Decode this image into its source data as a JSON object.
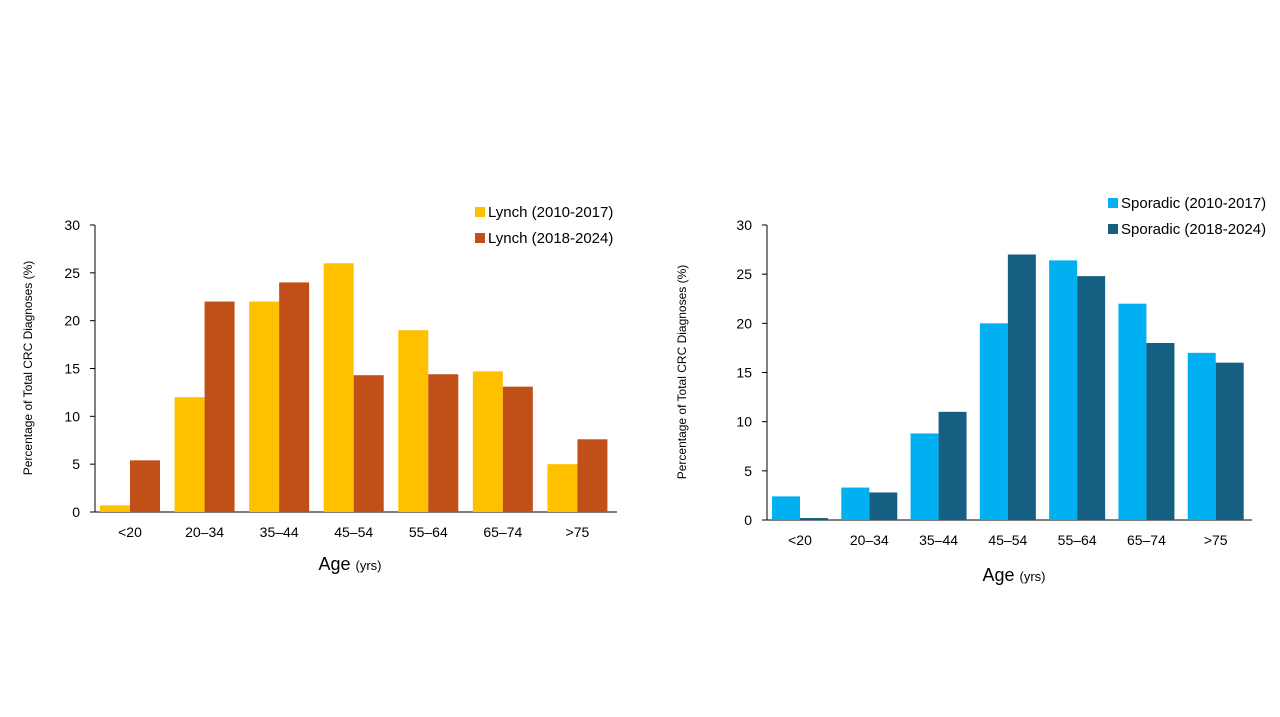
{
  "chart_data": [
    {
      "type": "bar",
      "categories": [
        "<20",
        "20–34",
        "35–44",
        "45–54",
        "55–64",
        "65–74",
        ">75"
      ],
      "series": [
        {
          "name": "Lynch (2010-2017)",
          "color": "#FFC000",
          "values": [
            0.7,
            12,
            22,
            26,
            19,
            14.7,
            5
          ]
        },
        {
          "name": "Lynch (2018-2024)",
          "color": "#C05017",
          "values": [
            5.4,
            22,
            24,
            14.3,
            14.4,
            13.1,
            7.6
          ]
        }
      ],
      "xlabel": "Age",
      "xlabel_unit": "(yrs)",
      "ylabel": "Percentage of Total CRC Diagnoses",
      "ylabel_unit": "(%)",
      "ylim": [
        0,
        30
      ],
      "yticks": [
        "0",
        "5",
        "10",
        "15",
        "20",
        "25",
        "30"
      ],
      "legend": "top-right",
      "grid": false
    },
    {
      "type": "bar",
      "categories": [
        "<20",
        "20–34",
        "35–44",
        "45–54",
        "55–64",
        "65–74",
        ">75"
      ],
      "series": [
        {
          "name": "Sporadic (2010-2017)",
          "color": "#00B0F0",
          "values": [
            2.4,
            3.3,
            8.8,
            20,
            26.4,
            22,
            17
          ]
        },
        {
          "name": "Sporadic (2018-2024)",
          "color": "#156082",
          "values": [
            0.2,
            2.8,
            11,
            27,
            24.8,
            18,
            16
          ]
        }
      ],
      "xlabel": "Age",
      "xlabel_unit": "(yrs)",
      "ylabel": "Percentage of Total CRC Diagnoses",
      "ylabel_unit": "(%)",
      "ylim": [
        0,
        30
      ],
      "yticks": [
        "0",
        "5",
        "10",
        "15",
        "20",
        "25",
        "30"
      ],
      "legend": "top-right",
      "grid": false
    }
  ]
}
